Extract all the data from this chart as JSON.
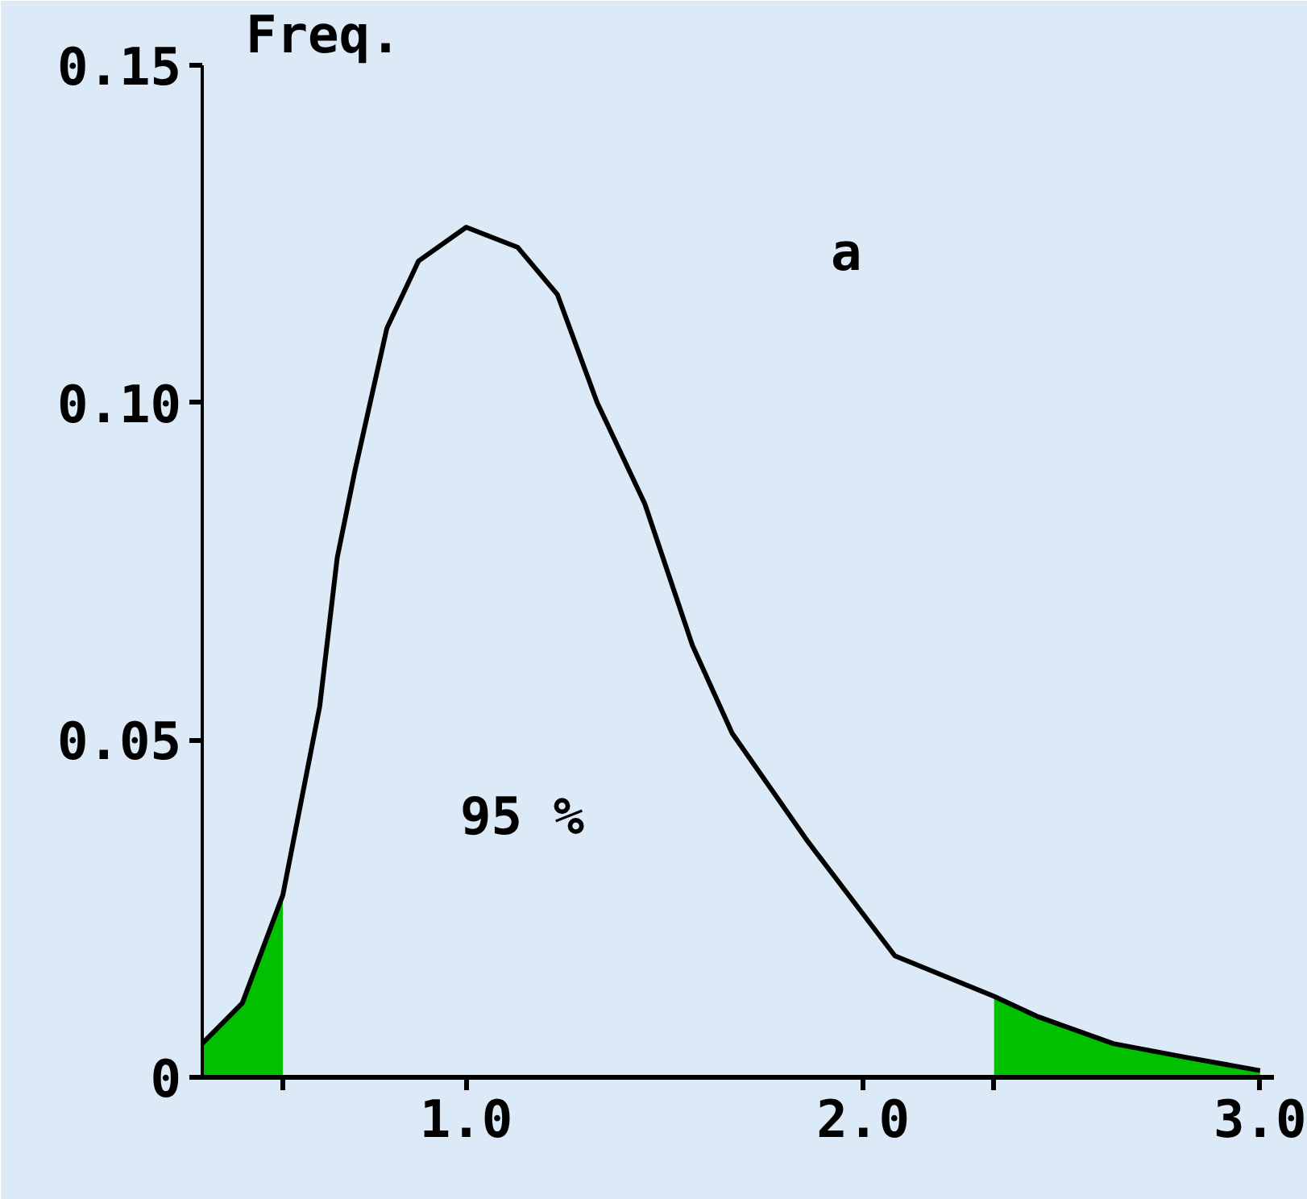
{
  "chart_data": {
    "type": "line",
    "ylabel": "Freq.",
    "xlim": [
      0.335,
      3.035
    ],
    "ylim": [
      0,
      0.15
    ],
    "xticks": [
      {
        "value": 1,
        "label": "1.0"
      },
      {
        "value": 2,
        "label": "2.0"
      },
      {
        "value": 3,
        "label": "3.0"
      }
    ],
    "yticks": [
      0,
      0.05,
      {
        "value": 0.1,
        "label": "0.10"
      },
      0.15
    ],
    "series": [
      {
        "color": "#000000",
        "x": [
          0.335,
          0.436,
          0.538,
          0.631,
          0.675,
          0.72,
          0.8,
          0.88,
          1.0,
          1.13,
          1.23,
          1.33,
          1.45,
          1.57,
          1.67,
          1.86,
          2.08,
          2.33,
          2.44,
          2.63,
          2.81,
          3.0
        ],
        "values": [
          0.005,
          0.011,
          0.027,
          0.055,
          0.077,
          0.09,
          0.111,
          0.121,
          0.126,
          0.123,
          0.116,
          0.1,
          0.085,
          0.064,
          0.051,
          0.035,
          0.018,
          0.012,
          0.009,
          0.005,
          0.003,
          0.001
        ]
      },
      {
        "type": "area",
        "color": "#00c000",
        "x": [
          0.335,
          0.436,
          0.538
        ],
        "values": [
          0.005,
          0.011,
          0.027
        ]
      },
      {
        "type": "area",
        "color": "#00c000",
        "x": [
          2.33,
          2.44,
          2.63,
          2.81,
          3.0
        ],
        "values": [
          0.012,
          0.009,
          0.005,
          0.003,
          0.001
        ]
      }
    ],
    "annotations": [
      "a",
      "95 %"
    ]
  }
}
